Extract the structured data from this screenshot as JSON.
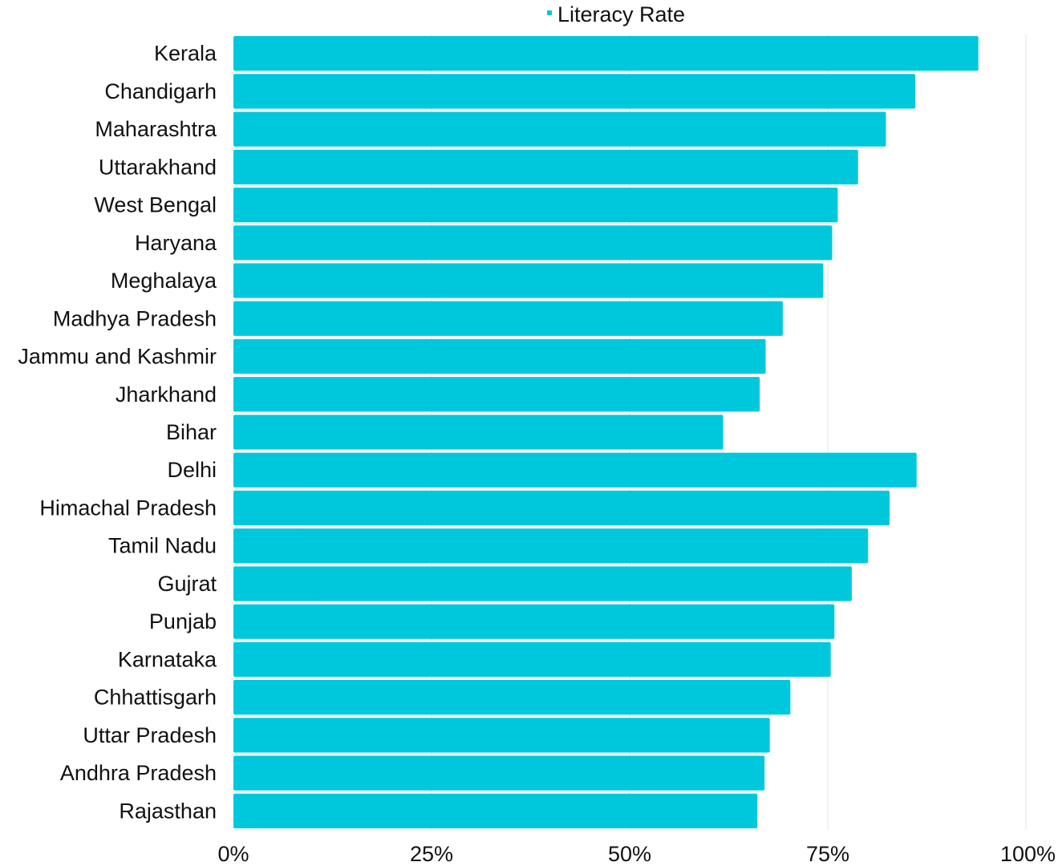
{
  "chart_data": {
    "type": "bar",
    "orientation": "horizontal",
    "categories": [
      "Kerala",
      "Chandigarh",
      "Maharashtra",
      "Uttarakhand",
      "West Bengal",
      "Haryana",
      "Meghalaya",
      "Madhya Pradesh",
      "Jammu and Kashmir",
      "Jharkhand",
      "Bihar",
      "Delhi",
      "Himachal Pradesh",
      "Tamil Nadu",
      "Gujrat",
      "Punjab",
      "Karnataka",
      "Chhattisgarh",
      "Uttar Pradesh",
      "Andhra Pradesh",
      "Rajasthan"
    ],
    "series": [
      {
        "name": "Literacy Rate",
        "color": "#00C8DC",
        "values": [
          94.0,
          86.05,
          82.34,
          78.82,
          76.26,
          75.55,
          74.43,
          69.32,
          67.16,
          66.41,
          61.8,
          86.21,
          82.8,
          80.09,
          78.03,
          75.84,
          75.37,
          70.28,
          67.68,
          67.02,
          66.11
        ]
      }
    ],
    "xlim": [
      0,
      100
    ],
    "xticks": [
      {
        "value": 0,
        "label": "0%"
      },
      {
        "value": 25,
        "label": "25%"
      },
      {
        "value": 50,
        "label": "50%"
      },
      {
        "value": 75,
        "label": "75%"
      },
      {
        "value": 100,
        "label": "100%"
      }
    ],
    "title": "",
    "xlabel": "",
    "ylabel": "",
    "grid": "vertical",
    "legend_position": "top"
  }
}
